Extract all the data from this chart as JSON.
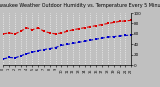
{
  "title": "Milwaukee Weather Outdoor Humidity vs. Temperature Every 5 Minutes",
  "bg_color": "#c0c0c0",
  "plot_bg_color": "#c0c0c0",
  "grid_color": "#ffffff",
  "red_color": "#dd0000",
  "blue_color": "#0000cc",
  "red_y": [
    60,
    62,
    60,
    65,
    72,
    68,
    72,
    65,
    62,
    60,
    62,
    65,
    68,
    70,
    72,
    74,
    76,
    78,
    80,
    82,
    84,
    85,
    86
  ],
  "blue_y": [
    12,
    15,
    14,
    18,
    22,
    25,
    28,
    30,
    32,
    34,
    38,
    40,
    42,
    44,
    46,
    48,
    50,
    52,
    54,
    55,
    56,
    57,
    58
  ],
  "n": 23,
  "ylim": [
    0,
    100
  ],
  "xlim": [
    0,
    22
  ],
  "y_ticks": [
    0,
    20,
    40,
    60,
    80,
    100
  ],
  "y_tick_labels": [
    "0",
    "20",
    "40",
    "60",
    "80",
    "100"
  ],
  "marker_size": 1.5,
  "line_width": 0.8,
  "title_fontsize": 3.5,
  "tick_fontsize": 3.0
}
